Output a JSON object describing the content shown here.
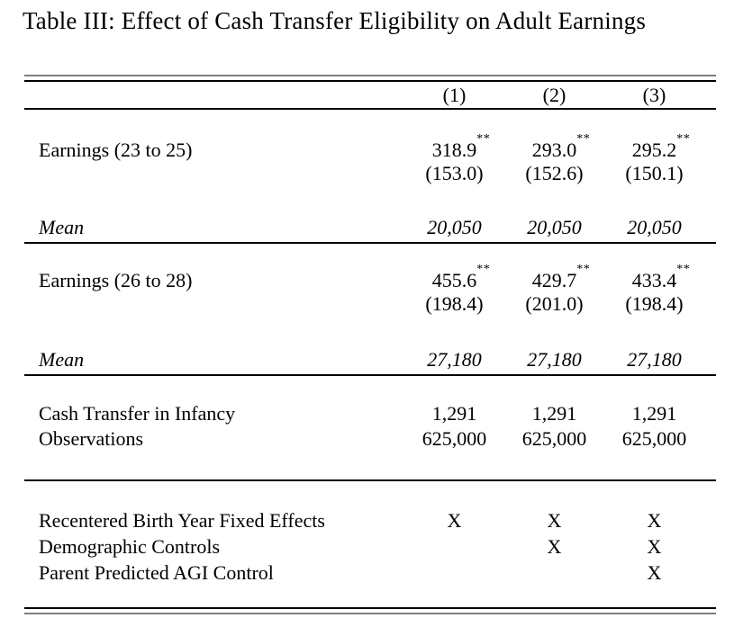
{
  "title": "Table III: Effect of Cash Transfer Eligibility on Adult Earnings",
  "colors": {
    "text": "#000000",
    "background": "#ffffff",
    "rule_black": "#000000",
    "rule_gray": "#7f7f7f"
  },
  "table": {
    "column_headers": [
      "(1)",
      "(2)",
      "(3)"
    ],
    "panels": [
      {
        "outcome_label": "Earnings (23 to 25)",
        "coefficients": [
          "318.9",
          "293.0",
          "295.2"
        ],
        "stars": [
          "**",
          "**",
          "**"
        ],
        "std_errors": [
          "(153.0)",
          "(152.6)",
          "(150.1)"
        ],
        "mean_label": "Mean",
        "means": [
          "20,050",
          "20,050",
          "20,050"
        ]
      },
      {
        "outcome_label": "Earnings (26 to 28)",
        "coefficients": [
          "455.6",
          "429.7",
          "433.4"
        ],
        "stars": [
          "**",
          "**",
          "**"
        ],
        "std_errors": [
          "(198.4)",
          "(201.0)",
          "(198.4)"
        ],
        "mean_label": "Mean",
        "means": [
          "27,180",
          "27,180",
          "27,180"
        ]
      }
    ],
    "stats_rows": [
      {
        "label": "Cash Transfer in Infancy",
        "values": [
          "1,291",
          "1,291",
          "1,291"
        ]
      },
      {
        "label": "Observations",
        "values": [
          "625,000",
          "625,000",
          "625,000"
        ]
      }
    ],
    "controls_rows": [
      {
        "label": "Recentered Birth Year Fixed Effects",
        "values": [
          "X",
          "X",
          "X"
        ]
      },
      {
        "label": "Demographic Controls",
        "values": [
          "",
          "X",
          "X"
        ]
      },
      {
        "label": "Parent Predicted AGI Control",
        "values": [
          "",
          "",
          "X"
        ]
      }
    ]
  }
}
